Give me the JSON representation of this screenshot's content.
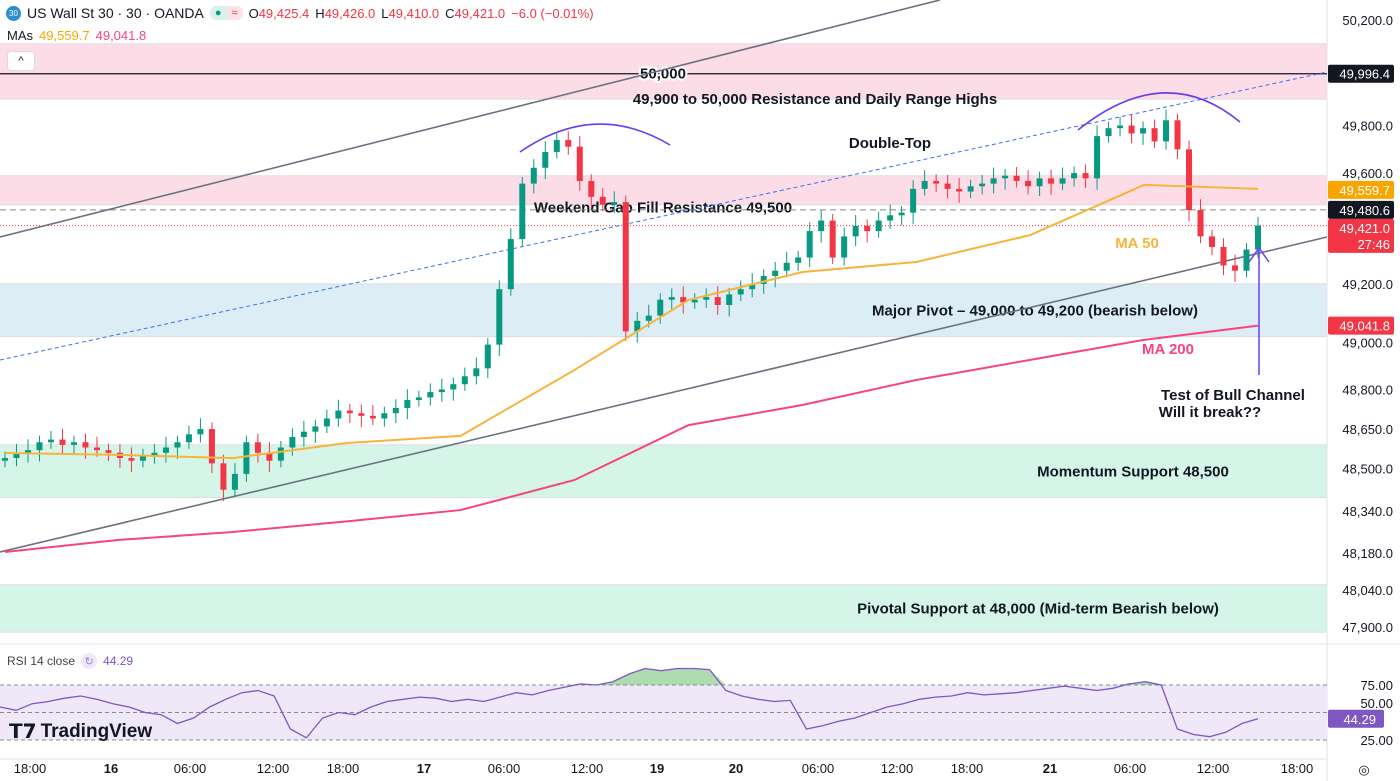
{
  "header": {
    "symbol_badge": "30",
    "title": "US Wall St 30 · 30 · OANDA",
    "open_label": "O",
    "open": "49,425.4",
    "high_label": "H",
    "high": "49,426.0",
    "low_label": "L",
    "low": "49,410.0",
    "close_label": "C",
    "close": "49,421.0",
    "change": "−6.0 (−0.01%)"
  },
  "mas": {
    "label": "MAs",
    "ma50": "49,559.7",
    "ma200": "49,041.8"
  },
  "rsi": {
    "label": "RSI 14 close",
    "value": "44.29"
  },
  "logo": "TradingView",
  "colors": {
    "up": "#089981",
    "down": "#f23645",
    "ma50": "#f7b43c",
    "ma200": "#f7457c",
    "rsi": "#7e57c2",
    "resistance_zone": "#fcdde7",
    "pivot_zone": "#dcedf6",
    "support_zone": "#d4f5e8"
  },
  "chart_data": {
    "type": "candlestick",
    "ylim": [
      47820,
      50260
    ],
    "y_ticks": [
      "50,200.0",
      "49,800.0",
      "49,600.0",
      "49,200.0",
      "49,000.0",
      "48,800.0",
      "48,650.0",
      "48,500.0",
      "48,340.0",
      "48,180.0",
      "48,040.0",
      "47,900.0"
    ],
    "y_tick_values": [
      50200,
      49800,
      49600,
      49200,
      49000,
      48800,
      48650,
      48500,
      48340,
      48180,
      48040,
      47900
    ],
    "x_ticks": [
      "18:00",
      "16",
      "06:00",
      "12:00",
      "18:00",
      "17",
      "06:00",
      "12:00",
      "19",
      "20",
      "06:00",
      "12:00",
      "18:00",
      "21",
      "06:00",
      "12:00",
      "18:00"
    ],
    "closes": [
      48540,
      48560,
      48570,
      48600,
      48610,
      48590,
      48600,
      48580,
      48570,
      48560,
      48540,
      48530,
      48550,
      48560,
      48580,
      48600,
      48630,
      48650,
      48520,
      48420,
      48480,
      48600,
      48560,
      48530,
      48580,
      48620,
      48640,
      48660,
      48690,
      48720,
      48710,
      48700,
      48690,
      48710,
      48730,
      48760,
      48770,
      48790,
      48800,
      48820,
      48850,
      48880,
      48970,
      49180,
      49370,
      49580,
      49640,
      49700,
      49745,
      49720,
      49590,
      49530,
      49500,
      49510,
      49020,
      49060,
      49080,
      49140,
      49150,
      49130,
      49140,
      49150,
      49120,
      49160,
      49180,
      49200,
      49230,
      49250,
      49280,
      49300,
      49400,
      49440,
      49300,
      49380,
      49420,
      49400,
      49440,
      49460,
      49470,
      49560,
      49590,
      49580,
      49560,
      49550,
      49570,
      49580,
      49600,
      49610,
      49590,
      49570,
      49600,
      49580,
      49600,
      49620,
      49600,
      49760,
      49790,
      49800,
      49770,
      49790,
      49740,
      49820,
      49710,
      49480,
      49380,
      49340,
      49270,
      49250,
      49330,
      49421
    ],
    "ma50": {
      "name": "MA 50",
      "values": [
        48559,
        48552,
        48540,
        48597,
        48624,
        48874,
        49139,
        49245,
        49283,
        49385,
        49575,
        49560
      ]
    },
    "ma200": {
      "name": "MA 200",
      "values": [
        48184,
        48230,
        48260,
        48300,
        48343,
        48457,
        48665,
        48741,
        48836,
        48912,
        48988,
        49042
      ]
    },
    "zones": [
      {
        "from": 49900,
        "to": 50110,
        "kind": "resistance",
        "label": "49,900 to 50,000 Resistance and Daily Range Highs"
      },
      {
        "from": 49500,
        "to": 49610,
        "kind": "resistance",
        "label": "Weekend Gap Fill Resistance 49,500"
      },
      {
        "from": 49000,
        "to": 49200,
        "kind": "pivot",
        "label": "Major Pivot – 49,000 to 49,200 (bearish below)"
      },
      {
        "from": 48390,
        "to": 48590,
        "kind": "support",
        "label": "Momentum Support 48,500"
      },
      {
        "from": 47880,
        "to": 48060,
        "kind": "support",
        "label": "Pivotal Support at 48,000 (Mid-term Bearish below)"
      }
    ],
    "annotations": {
      "level_50000": "50,000",
      "double_top": "Double-Top",
      "ma50_label": "MA 50",
      "ma200_label": "MA 200",
      "channel_test_1": "Test of Bull Channel",
      "channel_test_2": "Will it break??"
    },
    "price_labels": {
      "top_line": "49,996.4",
      "ma50": "49,559.7",
      "dashed": "49,480.6",
      "last": "49,421.0",
      "countdown": "27:46",
      "ma200": "49,041.8"
    },
    "rsi": {
      "ylim": [
        0,
        100
      ],
      "ticks": [
        "75.00",
        "50.00",
        "25.00"
      ],
      "tick_values": [
        75,
        50,
        25
      ],
      "values": [
        55,
        52,
        58,
        60,
        63,
        65,
        62,
        58,
        55,
        50,
        48,
        40,
        45,
        55,
        62,
        68,
        70,
        65,
        35,
        27,
        45,
        50,
        48,
        55,
        60,
        62,
        64,
        63,
        60,
        62,
        60,
        64,
        68,
        66,
        70,
        73,
        76,
        75,
        78,
        85,
        90,
        88,
        90,
        90,
        89,
        70,
        65,
        62,
        60,
        61,
        35,
        38,
        42,
        45,
        50,
        55,
        58,
        62,
        64,
        65,
        68,
        66,
        67,
        68,
        70,
        72,
        74,
        72,
        70,
        72,
        76,
        78,
        75,
        35,
        30,
        28,
        32,
        40,
        44.29
      ]
    }
  }
}
